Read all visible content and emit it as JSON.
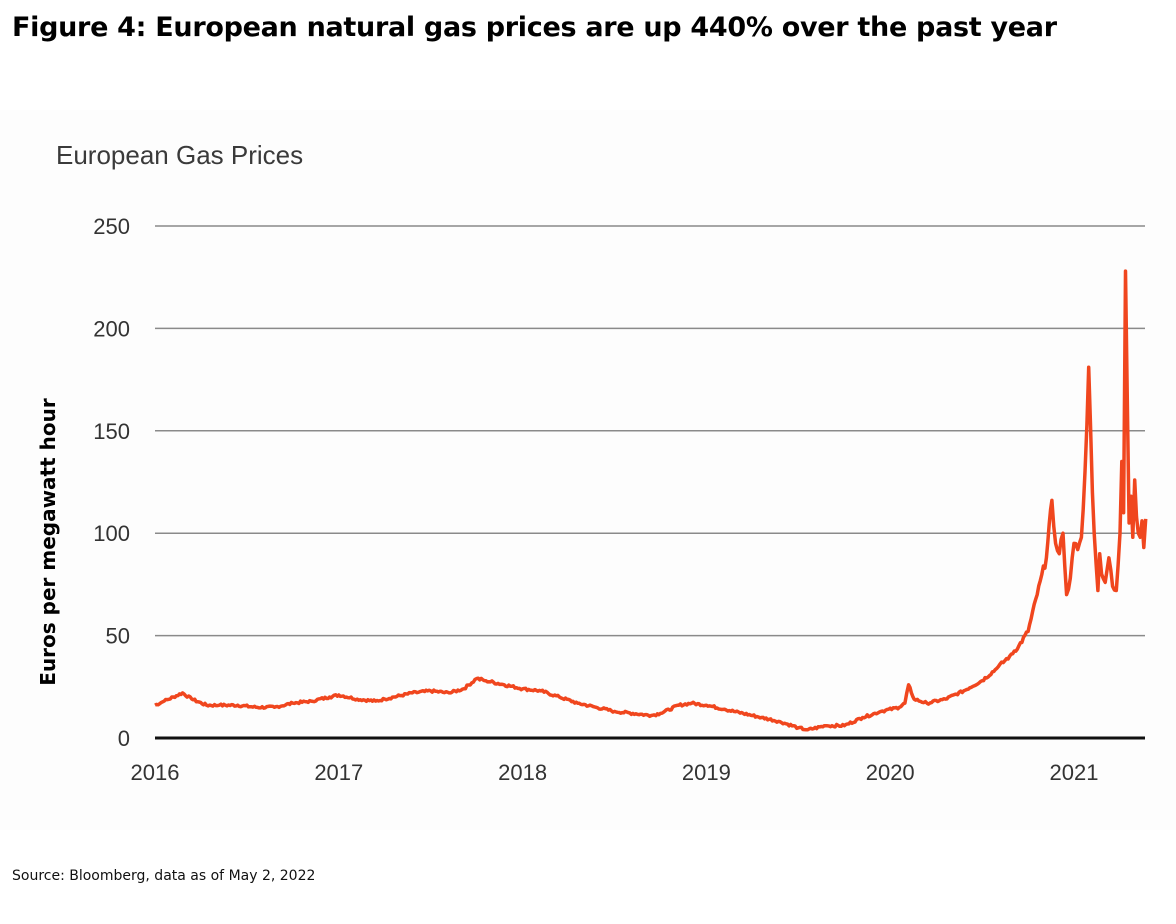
{
  "figure": {
    "title": "Figure 4: European natural gas prices are up 440% over the past year",
    "source": "Source: Bloomberg, data as of May 2, 2022"
  },
  "colors": {
    "line": "#f0461e",
    "grid": "#8a8a8a",
    "baseline": "#111111"
  },
  "chart_data": {
    "type": "line",
    "title": "European Gas Prices",
    "xlabel": "",
    "ylabel": "Euros per megawatt hour",
    "xlim": [
      2016,
      2021.4
    ],
    "ylim": [
      0,
      250
    ],
    "yticks": [
      0,
      50,
      100,
      150,
      200,
      250
    ],
    "xticks": [
      2016,
      2017,
      2018,
      2019,
      2020,
      2021
    ],
    "xtick_labels": [
      "2016",
      "2017",
      "2018",
      "2019",
      "2020",
      "2021"
    ],
    "grid": true,
    "legend": "none",
    "series": [
      {
        "name": "European Gas Price",
        "x": [
          2016.0,
          2016.05,
          2016.1,
          2016.15,
          2016.2,
          2016.28,
          2016.35,
          2016.45,
          2016.55,
          2016.65,
          2016.75,
          2016.85,
          2016.95,
          2017.0,
          2017.1,
          2017.2,
          2017.25,
          2017.3,
          2017.4,
          2017.5,
          2017.6,
          2017.68,
          2017.75,
          2017.8,
          2017.9,
          2018.0,
          2018.1,
          2018.2,
          2018.3,
          2018.4,
          2018.5,
          2018.6,
          2018.7,
          2018.75,
          2018.85,
          2018.92,
          2019.0,
          2019.1,
          2019.2,
          2019.3,
          2019.4,
          2019.5,
          2019.55,
          2019.65,
          2019.75,
          2019.85,
          2019.95,
          2020.05,
          2020.08,
          2020.1,
          2020.13,
          2020.2,
          2020.3,
          2020.4,
          2020.5,
          2020.58,
          2020.65,
          2020.7,
          2020.75,
          2020.8,
          2020.85,
          2020.88,
          2020.9,
          2020.92,
          2020.94,
          2020.96,
          2020.98,
          2021.0,
          2021.02,
          2021.04,
          2021.06,
          2021.08,
          2021.1,
          2021.12,
          2021.13,
          2021.14,
          2021.15,
          2021.17,
          2021.19,
          2021.21,
          2021.23,
          2021.25,
          2021.26,
          2021.27,
          2021.28,
          2021.29,
          2021.3,
          2021.31,
          2021.32,
          2021.33,
          2021.34,
          2021.35,
          2021.36,
          2021.37,
          2021.38,
          2021.39
        ],
        "y": [
          16,
          18,
          20,
          22,
          19,
          16,
          16,
          16,
          15,
          15,
          17,
          18,
          20,
          21,
          19,
          18,
          19,
          20,
          22,
          23,
          22,
          24,
          29,
          28,
          26,
          24,
          23,
          20,
          17,
          15,
          13,
          12,
          11,
          12,
          16,
          17,
          16,
          14,
          12,
          10,
          8,
          5,
          4,
          6,
          6,
          10,
          13,
          15,
          17,
          26,
          19,
          17,
          19,
          23,
          28,
          34,
          40,
          45,
          52,
          70,
          88,
          116,
          95,
          90,
          100,
          70,
          78,
          95,
          92,
          98,
          130,
          181,
          120,
          85,
          72,
          90,
          80,
          76,
          88,
          74,
          72,
          100,
          135,
          110,
          228,
          165,
          105,
          118,
          98,
          126,
          108,
          100,
          98,
          106,
          93,
          107
        ]
      }
    ]
  }
}
